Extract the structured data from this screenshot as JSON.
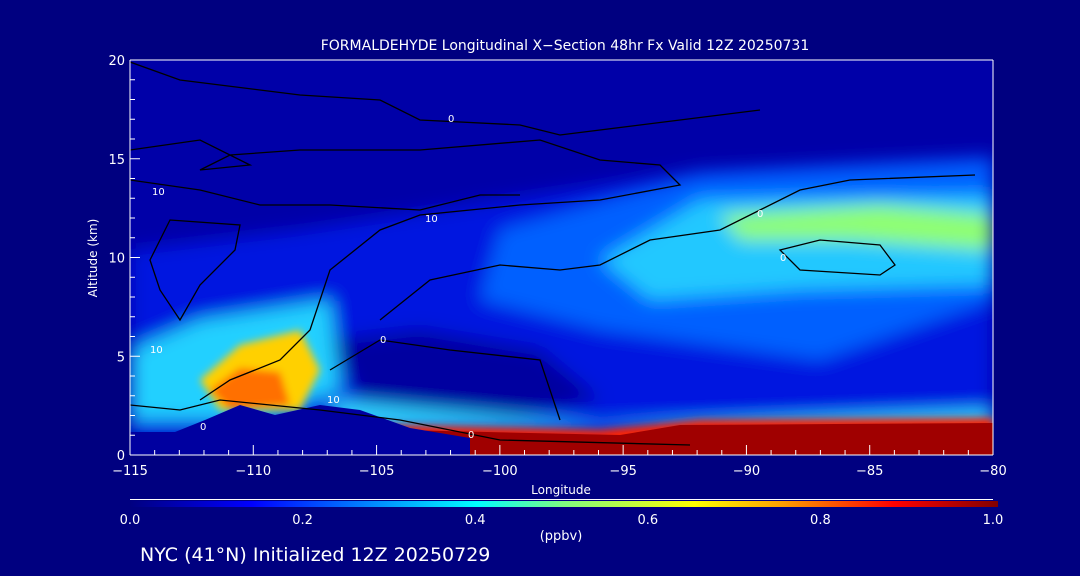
{
  "chart_data": {
    "type": "heatmap",
    "title": "FORMALDEHYDE Longitudinal X−Section 48hr  Fx Valid 12Z 20250731",
    "xlabel": "Longitude",
    "ylabel": "Altitude (km)",
    "xlim": [
      -115,
      -80
    ],
    "ylim": [
      0,
      20
    ],
    "xticks": [
      -115,
      -110,
      -105,
      -100,
      -95,
      -90,
      -85,
      -80
    ],
    "xtick_labels": [
      "−115",
      "−110",
      "−105",
      "−100",
      "−95",
      "−90",
      "−85",
      "−80"
    ],
    "yticks": [
      0,
      5,
      10,
      15,
      20
    ],
    "ytick_labels": [
      "0",
      "5",
      "10",
      "15",
      "20"
    ],
    "colorbar": {
      "range": [
        0.0,
        1.0
      ],
      "ticks": [
        "0.0",
        "0.2",
        "0.4",
        "0.6",
        "0.8",
        "1.0"
      ],
      "units": "(ppbv)",
      "colors": [
        "#000080",
        "#0000ff",
        "#00ffff",
        "#80ff80",
        "#ffff00",
        "#ff8000",
        "#ff0000",
        "#800000"
      ]
    },
    "regions": [
      {
        "name": "surface-maximum",
        "lon": [
          -104,
          -80
        ],
        "alt": [
          0,
          1.5
        ],
        "value": 1.0
      },
      {
        "name": "mountain-hotspot",
        "lon": [
          -112,
          -107
        ],
        "alt": [
          2,
          5
        ],
        "value": 0.7
      },
      {
        "name": "upper-plume",
        "lon": [
          -95,
          -80
        ],
        "alt": [
          9,
          13
        ],
        "value": 0.45
      },
      {
        "name": "mid-background",
        "lon": [
          -115,
          -80
        ],
        "alt": [
          2,
          14
        ],
        "value": 0.15
      },
      {
        "name": "stratosphere",
        "lon": [
          -115,
          -80
        ],
        "alt": [
          15,
          20
        ],
        "value": 0.05
      }
    ],
    "contour_labels": [
      "0",
      "10",
      "10",
      "10",
      "0",
      "0",
      "0",
      "10",
      "0",
      "0"
    ]
  },
  "footer": "NYC (41°N) Initialized 12Z 20250729"
}
